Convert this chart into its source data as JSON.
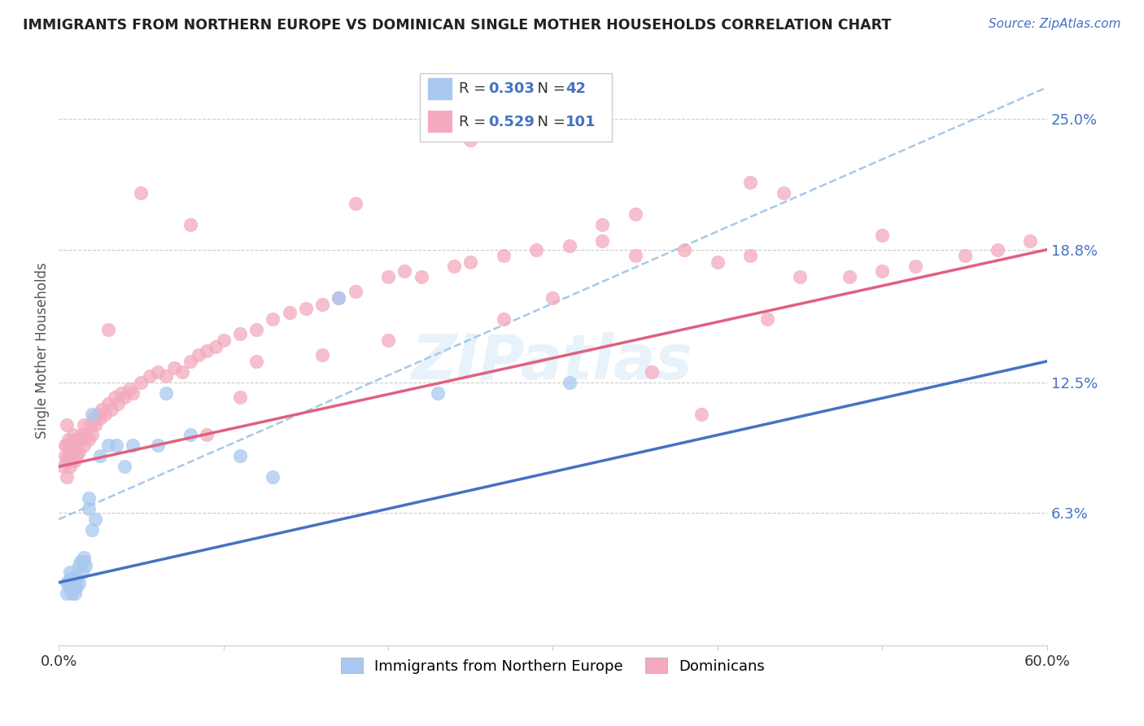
{
  "title": "IMMIGRANTS FROM NORTHERN EUROPE VS DOMINICAN SINGLE MOTHER HOUSEHOLDS CORRELATION CHART",
  "source": "Source: ZipAtlas.com",
  "ylabel": "Single Mother Households",
  "xlim": [
    0.0,
    0.6
  ],
  "ylim": [
    0.0,
    0.28
  ],
  "ytick_positions": [
    0.063,
    0.125,
    0.188,
    0.25
  ],
  "ytick_labels": [
    "6.3%",
    "12.5%",
    "18.8%",
    "25.0%"
  ],
  "blue_color": "#A8C8F0",
  "blue_line_color": "#4472C4",
  "pink_color": "#F4AABE",
  "pink_line_color": "#E06080",
  "dash_color": "#A8C8E8",
  "watermark": "ZIPatlas",
  "blue_r": "0.303",
  "blue_n": "42",
  "pink_r": "0.529",
  "pink_n": "101",
  "blue_line_x0": 0.0,
  "blue_line_x1": 0.6,
  "blue_line_y0": 0.03,
  "blue_line_y1": 0.135,
  "pink_line_x0": 0.0,
  "pink_line_x1": 0.6,
  "pink_line_y0": 0.085,
  "pink_line_y1": 0.188,
  "dash_line_x0": 0.0,
  "dash_line_x1": 0.6,
  "dash_line_y0": 0.06,
  "dash_line_y1": 0.265,
  "blue_scatter_x": [
    0.005,
    0.005,
    0.006,
    0.007,
    0.007,
    0.007,
    0.008,
    0.008,
    0.008,
    0.009,
    0.009,
    0.01,
    0.01,
    0.01,
    0.01,
    0.011,
    0.011,
    0.012,
    0.012,
    0.013,
    0.014,
    0.015,
    0.015,
    0.016,
    0.018,
    0.018,
    0.02,
    0.02,
    0.022,
    0.025,
    0.03,
    0.035,
    0.04,
    0.045,
    0.06,
    0.065,
    0.08,
    0.11,
    0.13,
    0.17,
    0.23,
    0.31
  ],
  "blue_scatter_y": [
    0.025,
    0.03,
    0.03,
    0.028,
    0.032,
    0.035,
    0.025,
    0.028,
    0.03,
    0.027,
    0.032,
    0.025,
    0.028,
    0.03,
    0.033,
    0.028,
    0.032,
    0.03,
    0.038,
    0.04,
    0.035,
    0.04,
    0.042,
    0.038,
    0.065,
    0.07,
    0.055,
    0.11,
    0.06,
    0.09,
    0.095,
    0.095,
    0.085,
    0.095,
    0.095,
    0.12,
    0.1,
    0.09,
    0.08,
    0.165,
    0.12,
    0.125
  ],
  "pink_scatter_x": [
    0.003,
    0.004,
    0.004,
    0.005,
    0.005,
    0.005,
    0.005,
    0.006,
    0.006,
    0.007,
    0.007,
    0.008,
    0.008,
    0.009,
    0.009,
    0.01,
    0.01,
    0.011,
    0.011,
    0.012,
    0.013,
    0.014,
    0.015,
    0.015,
    0.016,
    0.018,
    0.019,
    0.02,
    0.021,
    0.022,
    0.024,
    0.025,
    0.026,
    0.028,
    0.03,
    0.032,
    0.034,
    0.036,
    0.038,
    0.04,
    0.043,
    0.045,
    0.05,
    0.055,
    0.06,
    0.065,
    0.07,
    0.075,
    0.08,
    0.085,
    0.09,
    0.095,
    0.1,
    0.11,
    0.12,
    0.13,
    0.14,
    0.15,
    0.16,
    0.17,
    0.18,
    0.2,
    0.21,
    0.22,
    0.24,
    0.25,
    0.27,
    0.29,
    0.31,
    0.33,
    0.35,
    0.38,
    0.4,
    0.42,
    0.45,
    0.48,
    0.5,
    0.52,
    0.55,
    0.57,
    0.59,
    0.03,
    0.05,
    0.08,
    0.12,
    0.18,
    0.25,
    0.33,
    0.42,
    0.5,
    0.35,
    0.44,
    0.39,
    0.2,
    0.27,
    0.3,
    0.36,
    0.43,
    0.11,
    0.09,
    0.16
  ],
  "pink_scatter_y": [
    0.085,
    0.09,
    0.095,
    0.08,
    0.088,
    0.095,
    0.105,
    0.09,
    0.098,
    0.085,
    0.092,
    0.088,
    0.095,
    0.092,
    0.1,
    0.088,
    0.095,
    0.09,
    0.098,
    0.092,
    0.098,
    0.1,
    0.095,
    0.105,
    0.1,
    0.098,
    0.105,
    0.1,
    0.108,
    0.105,
    0.11,
    0.108,
    0.112,
    0.11,
    0.115,
    0.112,
    0.118,
    0.115,
    0.12,
    0.118,
    0.122,
    0.12,
    0.125,
    0.128,
    0.13,
    0.128,
    0.132,
    0.13,
    0.135,
    0.138,
    0.14,
    0.142,
    0.145,
    0.148,
    0.15,
    0.155,
    0.158,
    0.16,
    0.162,
    0.165,
    0.168,
    0.175,
    0.178,
    0.175,
    0.18,
    0.182,
    0.185,
    0.188,
    0.19,
    0.192,
    0.185,
    0.188,
    0.182,
    0.185,
    0.175,
    0.175,
    0.178,
    0.18,
    0.185,
    0.188,
    0.192,
    0.15,
    0.215,
    0.2,
    0.135,
    0.21,
    0.24,
    0.2,
    0.22,
    0.195,
    0.205,
    0.215,
    0.11,
    0.145,
    0.155,
    0.165,
    0.13,
    0.155,
    0.118,
    0.1,
    0.138
  ]
}
